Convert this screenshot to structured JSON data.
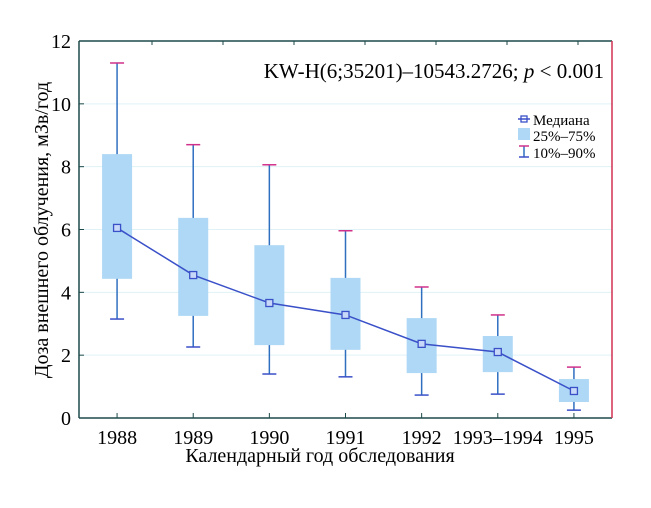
{
  "chart_data": {
    "type": "box",
    "annotation": "KW-H(6;35201)–10543.2726;",
    "annotation_p": "p",
    "annotation_p_rest": " < 0.001",
    "xlabel": "Календарный год обследования",
    "ylabel": "Доза внешнего облучения, мЗв/год",
    "ylim": [
      0,
      12
    ],
    "yticks": [
      0,
      2,
      4,
      6,
      8,
      10,
      12
    ],
    "grid": true,
    "legend_placement": "top-right",
    "legend": {
      "median": "Медиана",
      "iqr": "25%–75%",
      "whisker": "10%–90%"
    },
    "categories": [
      "1988",
      "1989",
      "1990",
      "1991",
      "1992",
      "1993–1994",
      "1995"
    ],
    "p10": [
      3.15,
      2.26,
      1.4,
      1.31,
      0.73,
      0.76,
      0.25
    ],
    "p25": [
      4.43,
      3.25,
      2.32,
      2.17,
      1.43,
      1.46,
      0.51
    ],
    "median": [
      6.05,
      4.55,
      3.66,
      3.28,
      2.36,
      2.1,
      0.86
    ],
    "p75": [
      8.4,
      6.37,
      5.5,
      4.46,
      3.18,
      2.61,
      1.24
    ],
    "p90": [
      11.3,
      8.7,
      8.06,
      5.96,
      4.17,
      3.28,
      1.62
    ],
    "colors": {
      "box": "#aed8f5",
      "median_line": "#3a50c8",
      "whisker": "#2f6fc0",
      "whisker_cap": "#d0308a",
      "grid": "#dff2f6",
      "axis": "#1d4a4a",
      "right_border": "#d03050"
    }
  }
}
